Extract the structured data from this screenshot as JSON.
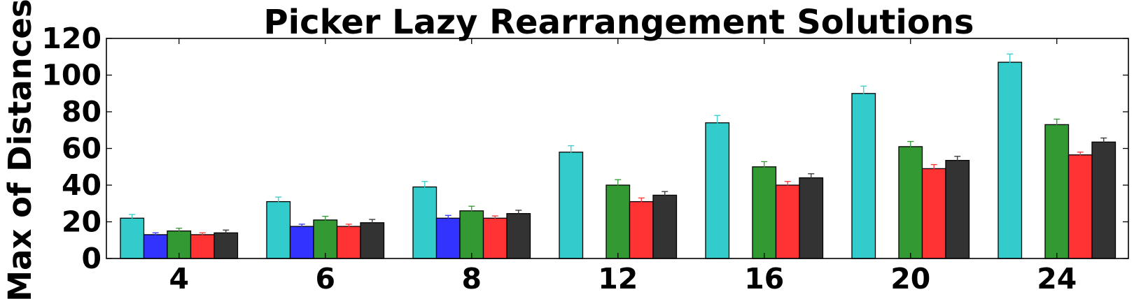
{
  "chart_data": {
    "type": "bar",
    "title": "Picker Lazy Rearrangement Solutions",
    "xlabel": "",
    "ylabel": "Max of Distances",
    "categories": [
      "4",
      "6",
      "8",
      "12",
      "16",
      "20",
      "24"
    ],
    "ylim": [
      0,
      120
    ],
    "yticks": [
      "0",
      "20",
      "40",
      "60",
      "80",
      "100",
      "120"
    ],
    "grid": false,
    "series": [
      {
        "color": "#33cccc",
        "values": [
          22,
          31,
          39,
          58,
          74,
          90,
          107
        ],
        "errors": [
          2.0,
          2.5,
          3.0,
          3.5,
          4.0,
          4.0,
          4.5
        ]
      },
      {
        "color": "#3333ff",
        "values": [
          13,
          17.5,
          22,
          null,
          null,
          null,
          null
        ],
        "errors": [
          1.0,
          1.2,
          1.5,
          0,
          0,
          0,
          0
        ]
      },
      {
        "color": "#339933",
        "values": [
          15,
          21,
          26,
          40,
          50,
          61,
          73
        ],
        "errors": [
          1.5,
          2.0,
          2.5,
          3.0,
          2.8,
          2.8,
          3.0
        ]
      },
      {
        "color": "#ff3333",
        "values": [
          13,
          17.5,
          22,
          31,
          40,
          49,
          56.5
        ],
        "errors": [
          1.0,
          1.2,
          1.2,
          2.0,
          2.0,
          2.2,
          1.5
        ]
      },
      {
        "color": "#333333",
        "values": [
          14,
          19.5,
          24.5,
          34.5,
          44,
          53.5,
          63.5
        ],
        "errors": [
          1.5,
          1.8,
          1.8,
          2.0,
          2.2,
          2.2,
          2.2
        ]
      }
    ]
  }
}
